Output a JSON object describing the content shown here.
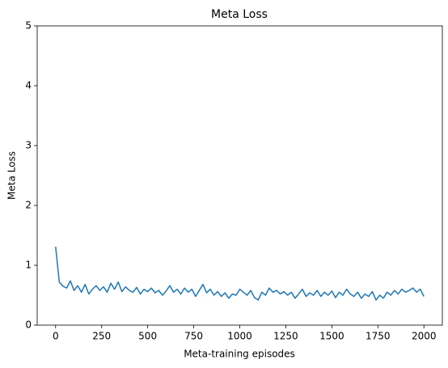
{
  "chart_data": {
    "type": "line",
    "title": "Meta Loss",
    "x_label": "Meta-training episodes",
    "y_label": "Meta Loss",
    "x": [
      0,
      20,
      40,
      60,
      80,
      100,
      120,
      140,
      160,
      180,
      200,
      220,
      240,
      260,
      280,
      300,
      320,
      340,
      360,
      380,
      400,
      420,
      440,
      460,
      480,
      500,
      520,
      540,
      560,
      580,
      600,
      620,
      640,
      660,
      680,
      700,
      720,
      740,
      760,
      780,
      800,
      820,
      840,
      860,
      880,
      900,
      920,
      940,
      960,
      980,
      1000,
      1020,
      1040,
      1060,
      1080,
      1100,
      1120,
      1140,
      1160,
      1180,
      1200,
      1220,
      1240,
      1260,
      1280,
      1300,
      1320,
      1340,
      1360,
      1380,
      1400,
      1420,
      1440,
      1460,
      1480,
      1500,
      1520,
      1540,
      1560,
      1580,
      1600,
      1620,
      1640,
      1660,
      1680,
      1700,
      1720,
      1740,
      1760,
      1780,
      1800,
      1820,
      1840,
      1860,
      1880,
      1900,
      1920,
      1940,
      1960,
      1980,
      2000
    ],
    "series": [
      {
        "name": "Meta Loss",
        "color": "#1f77b4",
        "values": [
          1.31,
          0.72,
          0.65,
          0.62,
          0.74,
          0.58,
          0.66,
          0.55,
          0.68,
          0.52,
          0.6,
          0.66,
          0.58,
          0.64,
          0.55,
          0.7,
          0.6,
          0.72,
          0.56,
          0.64,
          0.58,
          0.55,
          0.63,
          0.52,
          0.6,
          0.56,
          0.62,
          0.54,
          0.58,
          0.5,
          0.57,
          0.66,
          0.55,
          0.6,
          0.52,
          0.62,
          0.55,
          0.6,
          0.48,
          0.58,
          0.68,
          0.54,
          0.6,
          0.5,
          0.56,
          0.48,
          0.54,
          0.45,
          0.52,
          0.5,
          0.6,
          0.55,
          0.5,
          0.58,
          0.46,
          0.42,
          0.55,
          0.5,
          0.62,
          0.55,
          0.58,
          0.52,
          0.56,
          0.5,
          0.55,
          0.45,
          0.52,
          0.6,
          0.48,
          0.54,
          0.5,
          0.58,
          0.48,
          0.55,
          0.5,
          0.57,
          0.46,
          0.55,
          0.5,
          0.6,
          0.52,
          0.48,
          0.55,
          0.45,
          0.52,
          0.48,
          0.56,
          0.42,
          0.5,
          0.45,
          0.55,
          0.5,
          0.58,
          0.52,
          0.6,
          0.55,
          0.58,
          0.62,
          0.55,
          0.6,
          0.48
        ]
      }
    ],
    "xlim": [
      -100,
      2100
    ],
    "xticks": [
      0,
      250,
      500,
      750,
      1000,
      1250,
      1500,
      1750,
      2000
    ],
    "ylim": [
      0,
      5
    ],
    "yticks": [
      0,
      1,
      2,
      3,
      4,
      5
    ],
    "grid": false
  }
}
